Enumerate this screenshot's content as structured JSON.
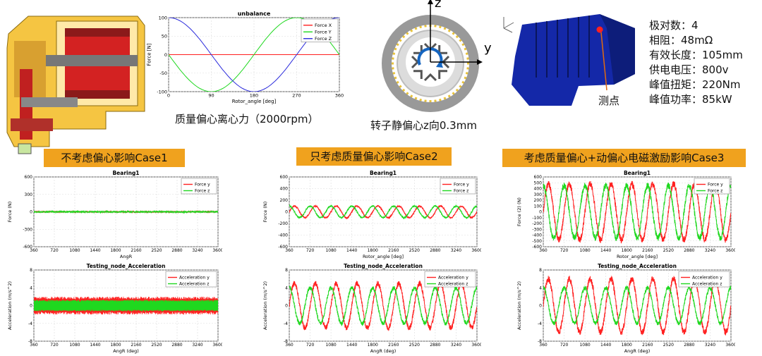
{
  "captions": {
    "unbalance_force": "质量偏心离心力（2000rpm）",
    "rotor_offset": "转子静偏心z向0.3mm"
  },
  "cases": [
    {
      "label": "不考虑偏心影响Case1"
    },
    {
      "label": "只考虑质量偏心影响Case2"
    },
    {
      "label": "考虑质量偏心+动偏心电磁激励影响Case3"
    }
  ],
  "specs": [
    "极对数：4",
    "相阻：48mΩ",
    "有效长度：105mm",
    "供电电压：800v",
    "峰值扭矩：220Nm",
    "峰值功率：85kW"
  ],
  "measure_point_label": "测点",
  "axis_labels": {
    "y": "y",
    "z": "z"
  },
  "colors": {
    "red": "#ff2020",
    "green": "#1fd81f",
    "blue": "#2b2bdc",
    "orange": "#f0a21e",
    "motor_blue": "#1428a8",
    "housing_yellow": "#f5c542"
  },
  "chart_data": [
    {
      "id": "unbalance",
      "type": "line",
      "title": "unbalance",
      "xlabel": "Rotor_angle [deg]",
      "ylabel": "Force [N]",
      "xlim": [
        0,
        360
      ],
      "ylim": [
        -100,
        100
      ],
      "xticks": [
        0,
        90,
        180,
        270,
        360
      ],
      "yticks": [
        -100,
        -50,
        0,
        50,
        100
      ],
      "legend": "top-right",
      "series": [
        {
          "name": "Force X",
          "color": "#ff2020",
          "x": [
            0,
            360
          ],
          "y": [
            0,
            0
          ]
        },
        {
          "name": "Force Y",
          "color": "#1fd81f",
          "x": [
            0,
            30,
            60,
            90,
            120,
            150,
            180,
            210,
            240,
            270,
            300,
            330,
            360
          ],
          "y": [
            0,
            -50,
            -87,
            -100,
            -87,
            -50,
            0,
            50,
            87,
            100,
            87,
            50,
            0
          ]
        },
        {
          "name": "Force Z",
          "color": "#2b2bdc",
          "x": [
            0,
            30,
            60,
            90,
            120,
            150,
            180,
            210,
            240,
            270,
            300,
            330,
            360
          ],
          "y": [
            100,
            87,
            50,
            0,
            -50,
            -87,
            -100,
            -87,
            -50,
            0,
            50,
            87,
            100
          ]
        }
      ]
    },
    {
      "id": "case1_bearing",
      "type": "line",
      "title": "Bearing1",
      "xlabel": "AngR",
      "ylabel": "Force (N)",
      "xlim": [
        360,
        3600
      ],
      "ylim": [
        -600,
        600
      ],
      "xticks": [
        360,
        720,
        1080,
        1440,
        1800,
        2160,
        2520,
        2880,
        3240,
        3600
      ],
      "yticks": [
        -600,
        -300,
        0,
        300,
        600
      ],
      "legend": "top-right",
      "series": [
        {
          "name": "Force y",
          "color": "#ff2020",
          "amplitude": 0,
          "noise": 8
        },
        {
          "name": "Force z",
          "color": "#1fd81f",
          "amplitude": 0,
          "noise": 12
        }
      ]
    },
    {
      "id": "case1_accel",
      "type": "line",
      "title": "Testing_node_Acceleration",
      "xlabel": "AngR (deg)",
      "ylabel": "Acceleration (m/s^2)",
      "xlim": [
        360,
        3600
      ],
      "ylim": [
        -8,
        8
      ],
      "xticks": [
        360,
        720,
        1080,
        1440,
        1800,
        2160,
        2520,
        2880,
        3240,
        3600
      ],
      "yticks": [
        -8,
        -4,
        0,
        4,
        8
      ],
      "legend": "top-right",
      "series": [
        {
          "name": "Acceleration y",
          "color": "#ff2020",
          "band": [
            -2,
            2
          ]
        },
        {
          "name": "Acceleration z",
          "color": "#1fd81f",
          "band": [
            -1.3,
            1.3
          ]
        }
      ]
    },
    {
      "id": "case2_bearing",
      "type": "line",
      "title": "Bearing1",
      "xlabel": "Rotor_angle [deg]",
      "ylabel": "Force (N)",
      "xlim": [
        360,
        3600
      ],
      "ylim": [
        -600,
        600
      ],
      "xticks": [
        360,
        720,
        1080,
        1440,
        1800,
        2160,
        2520,
        2880,
        3240,
        3600
      ],
      "yticks": [
        -600,
        -400,
        -200,
        0,
        200,
        400,
        600
      ],
      "legend": "top-right",
      "series": [
        {
          "name": "Force y",
          "color": "#ff2020",
          "amplitude": 100,
          "period": 360,
          "phase": 0
        },
        {
          "name": "Force z",
          "color": "#1fd81f",
          "amplitude": 100,
          "period": 360,
          "phase": 90
        }
      ]
    },
    {
      "id": "case2_accel",
      "type": "line",
      "title": "Testing_node_Acceleration",
      "xlabel": "AngR (deg)",
      "ylabel": "Acceleration (m/s^2)",
      "xlim": [
        360,
        3600
      ],
      "ylim": [
        -8,
        8
      ],
      "xticks": [
        360,
        720,
        1080,
        1440,
        1800,
        2160,
        2520,
        2880,
        3240,
        3600
      ],
      "yticks": [
        -8,
        -4,
        0,
        4,
        8
      ],
      "legend": "top-right",
      "series": [
        {
          "name": "Acceleration y",
          "color": "#ff2020",
          "amplitude": 5,
          "period": 360,
          "phase": 0
        },
        {
          "name": "Acceleration z",
          "color": "#1fd81f",
          "amplitude": 4,
          "period": 360,
          "phase": 90
        }
      ]
    },
    {
      "id": "case3_bearing",
      "type": "line",
      "title": "Bearing1",
      "xlabel": "Rotor_angle [deg]",
      "ylabel": "Force (2) (N)",
      "xlim": [
        360,
        3600
      ],
      "ylim": [
        -600,
        600
      ],
      "xticks": [
        360,
        720,
        1080,
        1440,
        1800,
        2160,
        2520,
        2880,
        3240,
        3600
      ],
      "yticks": [
        -600,
        -500,
        -400,
        -300,
        -200,
        -100,
        0,
        100,
        200,
        300,
        400,
        500,
        600
      ],
      "legend": "top-right",
      "series": [
        {
          "name": "Force y",
          "color": "#ff2020",
          "amplitude": 480,
          "period": 360,
          "phase": 0
        },
        {
          "name": "Force z",
          "color": "#1fd81f",
          "amplitude": 450,
          "period": 360,
          "phase": 90
        }
      ]
    },
    {
      "id": "case3_accel",
      "type": "line",
      "title": "Testing_node_Acceleration",
      "xlabel": "AngR (deg)",
      "ylabel": "Acceleration (m/s^2)",
      "xlim": [
        360,
        3600
      ],
      "ylim": [
        -8,
        8
      ],
      "xticks": [
        360,
        720,
        1080,
        1440,
        1800,
        2160,
        2520,
        2880,
        3240,
        3600
      ],
      "yticks": [
        -8,
        -4,
        0,
        4,
        8
      ],
      "legend": "top-right",
      "series": [
        {
          "name": "Acceleration y",
          "color": "#ff2020",
          "amplitude": 6,
          "period": 360,
          "phase": 0
        },
        {
          "name": "Acceleration z",
          "color": "#1fd81f",
          "amplitude": 4,
          "period": 360,
          "phase": 90
        }
      ]
    }
  ]
}
